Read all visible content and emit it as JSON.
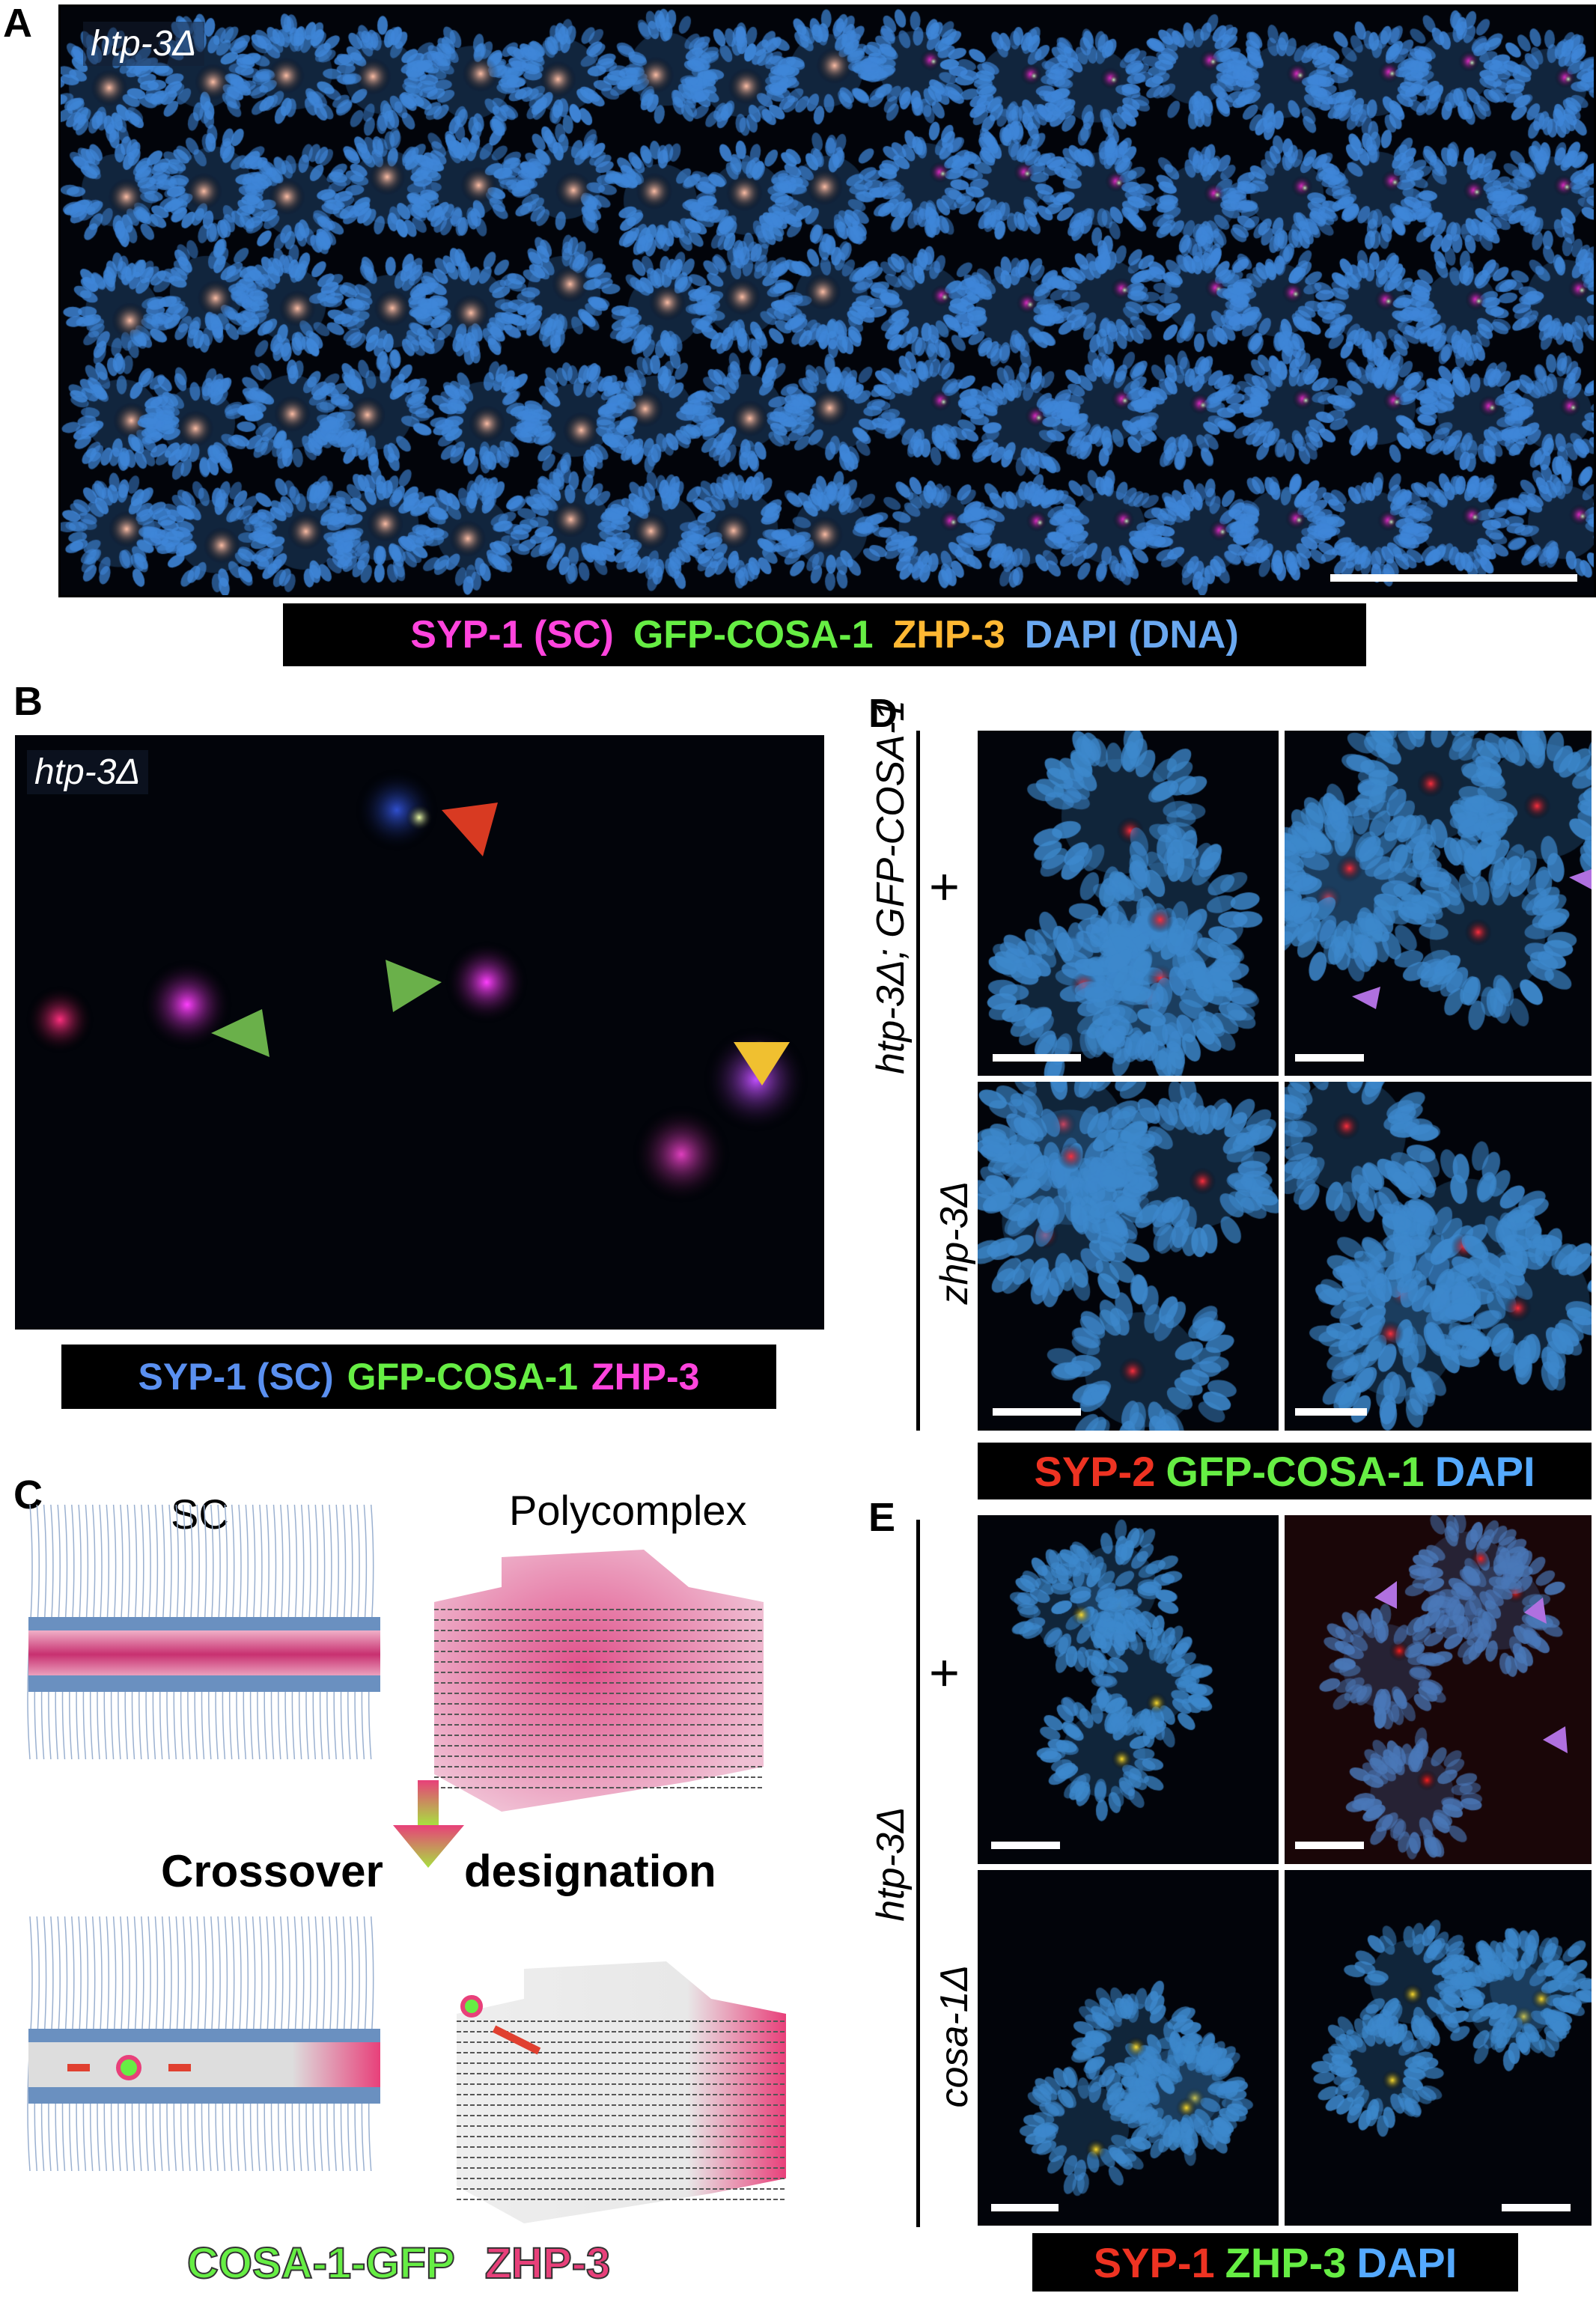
{
  "panels": {
    "A": {
      "label": "A",
      "genotype": "htp-3Δ",
      "legend": [
        {
          "text": "SYP-1 (SC)",
          "color": "#ff44dd"
        },
        {
          "text": "GFP-COSA-1",
          "color": "#66ee44"
        },
        {
          "text": "ZHP-3",
          "color": "#ffb833"
        },
        {
          "text": "DAPI (DNA)",
          "color": "#6aa8f0"
        }
      ]
    },
    "B": {
      "label": "B",
      "genotype": "htp-3Δ",
      "arrowhead_colors": [
        "#d83a22",
        "#6ab04a",
        "#6ab04a",
        "#f0c030"
      ],
      "legend": [
        {
          "text": "SYP-1 (SC)",
          "color": "#5a90f0"
        },
        {
          "text": "GFP-COSA-1",
          "color": "#66ee44"
        },
        {
          "text": "ZHP-3",
          "color": "#ff44dd"
        }
      ]
    },
    "C": {
      "label": "C",
      "sc_title": "SC",
      "polycomplex_title": "Polycomplex",
      "transition_left": "Crossover",
      "transition_right": "designation",
      "legend": [
        {
          "text": "COSA-1-GFP",
          "color": "#66ee44"
        },
        {
          "text": "ZHP-3",
          "color": "#e8407a"
        }
      ]
    },
    "D": {
      "label": "D",
      "group_label": "htp-3Δ; GFP-COSA-1",
      "row_labels": [
        "+",
        "zhp-3Δ"
      ],
      "legend": [
        {
          "text": "SYP-2",
          "color": "#ee3322"
        },
        {
          "text": "GFP-COSA-1",
          "color": "#66ee44"
        },
        {
          "text": "DAPI",
          "color": "#55aaff"
        }
      ]
    },
    "E": {
      "label": "E",
      "group_label": "htp-3Δ",
      "row_labels": [
        "+",
        "cosa-1Δ"
      ],
      "legend": [
        {
          "text": "SYP-1",
          "color": "#ee3322"
        },
        {
          "text": "ZHP-3",
          "color": "#66ee44"
        },
        {
          "text": "DAPI",
          "color": "#55aaff"
        }
      ]
    }
  }
}
